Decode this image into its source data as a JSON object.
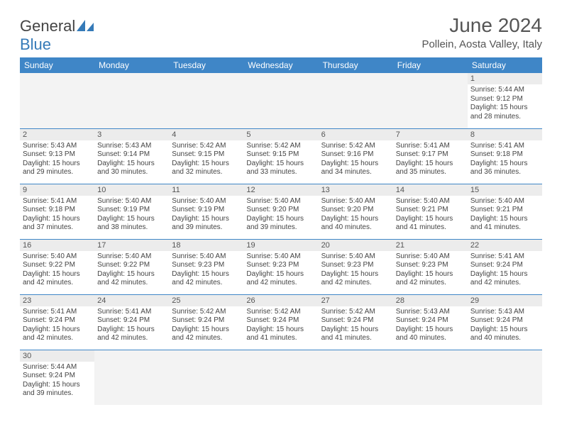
{
  "colors": {
    "header_bg": "#3f86c7",
    "header_text": "#ffffff",
    "daynum_bg": "#ececec",
    "cell_border": "#3f86c7",
    "title_color": "#555555",
    "body_text": "#444444",
    "logo_gray": "#444444",
    "logo_blue": "#357ab8"
  },
  "logo": {
    "part1": "General",
    "part2": "Blue"
  },
  "title": "June 2024",
  "location": "Pollein, Aosta Valley, Italy",
  "day_headers": [
    "Sunday",
    "Monday",
    "Tuesday",
    "Wednesday",
    "Thursday",
    "Friday",
    "Saturday"
  ],
  "weeks": [
    [
      null,
      null,
      null,
      null,
      null,
      null,
      {
        "n": "1",
        "sr": "5:44 AM",
        "ss": "9:12 PM",
        "dh": "15",
        "dm": "28"
      }
    ],
    [
      {
        "n": "2",
        "sr": "5:43 AM",
        "ss": "9:13 PM",
        "dh": "15",
        "dm": "29"
      },
      {
        "n": "3",
        "sr": "5:43 AM",
        "ss": "9:14 PM",
        "dh": "15",
        "dm": "30"
      },
      {
        "n": "4",
        "sr": "5:42 AM",
        "ss": "9:15 PM",
        "dh": "15",
        "dm": "32"
      },
      {
        "n": "5",
        "sr": "5:42 AM",
        "ss": "9:15 PM",
        "dh": "15",
        "dm": "33"
      },
      {
        "n": "6",
        "sr": "5:42 AM",
        "ss": "9:16 PM",
        "dh": "15",
        "dm": "34"
      },
      {
        "n": "7",
        "sr": "5:41 AM",
        "ss": "9:17 PM",
        "dh": "15",
        "dm": "35"
      },
      {
        "n": "8",
        "sr": "5:41 AM",
        "ss": "9:18 PM",
        "dh": "15",
        "dm": "36"
      }
    ],
    [
      {
        "n": "9",
        "sr": "5:41 AM",
        "ss": "9:18 PM",
        "dh": "15",
        "dm": "37"
      },
      {
        "n": "10",
        "sr": "5:40 AM",
        "ss": "9:19 PM",
        "dh": "15",
        "dm": "38"
      },
      {
        "n": "11",
        "sr": "5:40 AM",
        "ss": "9:19 PM",
        "dh": "15",
        "dm": "39"
      },
      {
        "n": "12",
        "sr": "5:40 AM",
        "ss": "9:20 PM",
        "dh": "15",
        "dm": "39"
      },
      {
        "n": "13",
        "sr": "5:40 AM",
        "ss": "9:20 PM",
        "dh": "15",
        "dm": "40"
      },
      {
        "n": "14",
        "sr": "5:40 AM",
        "ss": "9:21 PM",
        "dh": "15",
        "dm": "41"
      },
      {
        "n": "15",
        "sr": "5:40 AM",
        "ss": "9:21 PM",
        "dh": "15",
        "dm": "41"
      }
    ],
    [
      {
        "n": "16",
        "sr": "5:40 AM",
        "ss": "9:22 PM",
        "dh": "15",
        "dm": "42"
      },
      {
        "n": "17",
        "sr": "5:40 AM",
        "ss": "9:22 PM",
        "dh": "15",
        "dm": "42"
      },
      {
        "n": "18",
        "sr": "5:40 AM",
        "ss": "9:23 PM",
        "dh": "15",
        "dm": "42"
      },
      {
        "n": "19",
        "sr": "5:40 AM",
        "ss": "9:23 PM",
        "dh": "15",
        "dm": "42"
      },
      {
        "n": "20",
        "sr": "5:40 AM",
        "ss": "9:23 PM",
        "dh": "15",
        "dm": "42"
      },
      {
        "n": "21",
        "sr": "5:40 AM",
        "ss": "9:23 PM",
        "dh": "15",
        "dm": "42"
      },
      {
        "n": "22",
        "sr": "5:41 AM",
        "ss": "9:24 PM",
        "dh": "15",
        "dm": "42"
      }
    ],
    [
      {
        "n": "23",
        "sr": "5:41 AM",
        "ss": "9:24 PM",
        "dh": "15",
        "dm": "42"
      },
      {
        "n": "24",
        "sr": "5:41 AM",
        "ss": "9:24 PM",
        "dh": "15",
        "dm": "42"
      },
      {
        "n": "25",
        "sr": "5:42 AM",
        "ss": "9:24 PM",
        "dh": "15",
        "dm": "42"
      },
      {
        "n": "26",
        "sr": "5:42 AM",
        "ss": "9:24 PM",
        "dh": "15",
        "dm": "41"
      },
      {
        "n": "27",
        "sr": "5:42 AM",
        "ss": "9:24 PM",
        "dh": "15",
        "dm": "41"
      },
      {
        "n": "28",
        "sr": "5:43 AM",
        "ss": "9:24 PM",
        "dh": "15",
        "dm": "40"
      },
      {
        "n": "29",
        "sr": "5:43 AM",
        "ss": "9:24 PM",
        "dh": "15",
        "dm": "40"
      }
    ],
    [
      {
        "n": "30",
        "sr": "5:44 AM",
        "ss": "9:24 PM",
        "dh": "15",
        "dm": "39"
      },
      null,
      null,
      null,
      null,
      null,
      null
    ]
  ],
  "labels": {
    "sunrise": "Sunrise:",
    "sunset": "Sunset:",
    "daylight_prefix": "Daylight:",
    "hours_word": "hours",
    "and_word": "and",
    "minutes_word": "minutes."
  }
}
